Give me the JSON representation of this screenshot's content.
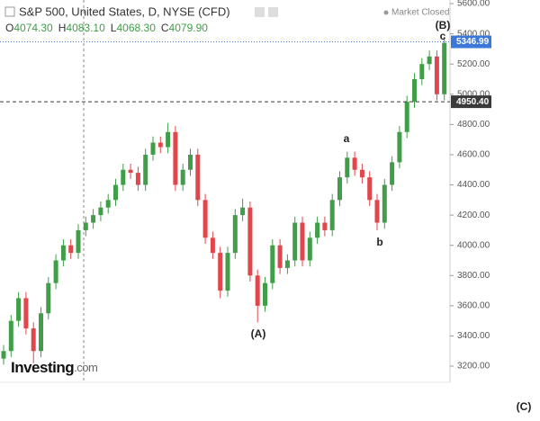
{
  "header": {
    "title": "S&P 500, United States, D, NYSE (CFD)",
    "status": "Market Closed",
    "ohlc": [
      {
        "key": "O",
        "value": "4074.30"
      },
      {
        "key": "H",
        "value": "4083.10"
      },
      {
        "key": "L",
        "value": "4068.30"
      },
      {
        "key": "C",
        "value": "4079.90"
      }
    ],
    "logo": "Investing",
    "logo_suffix": ".com"
  },
  "chart_data": {
    "type": "candlestick",
    "open": [
      3250,
      3300,
      3500,
      3650,
      3450,
      3300,
      3550,
      3750,
      3900,
      4000,
      3950,
      4100,
      4150,
      4200,
      4250,
      4300,
      4400,
      4500,
      4480,
      4400,
      4600,
      4680,
      4650,
      4750,
      4400,
      4500,
      4600,
      4300,
      4050,
      3950,
      3700,
      3950,
      4200,
      4250,
      3800,
      3600,
      3750,
      4000,
      3850,
      3900,
      4150,
      3900,
      4050,
      4150,
      4100,
      4300,
      4450,
      4580,
      4500,
      4450,
      4300,
      4150,
      4400,
      4550,
      4750,
      4950,
      5100,
      5200,
      5250,
      5000
    ],
    "high": [
      3340,
      3540,
      3690,
      3690,
      3490,
      3590,
      3790,
      3940,
      4040,
      4040,
      4140,
      4190,
      4240,
      4290,
      4340,
      4440,
      4540,
      4540,
      4520,
      4640,
      4720,
      4720,
      4810,
      4790,
      4540,
      4640,
      4640,
      4340,
      4090,
      3990,
      3990,
      4240,
      4310,
      4290,
      3840,
      3790,
      4040,
      4040,
      3940,
      4190,
      4190,
      4090,
      4190,
      4190,
      4340,
      4490,
      4620,
      4620,
      4540,
      4490,
      4340,
      4440,
      4590,
      4790,
      4990,
      5140,
      5240,
      5290,
      5290,
      5380
    ],
    "low": [
      3210,
      3260,
      3460,
      3410,
      3220,
      3260,
      3510,
      3710,
      3860,
      3910,
      3910,
      4060,
      4110,
      4160,
      4210,
      4260,
      4360,
      4440,
      4360,
      4360,
      4560,
      4610,
      4610,
      4360,
      4360,
      4460,
      4260,
      4010,
      3910,
      3650,
      3660,
      3910,
      4160,
      3760,
      3490,
      3560,
      3710,
      3810,
      3810,
      3860,
      3860,
      3860,
      4010,
      4060,
      4060,
      4260,
      4410,
      4460,
      4410,
      4260,
      4100,
      4110,
      4360,
      4510,
      4710,
      4910,
      5060,
      5160,
      4960,
      4960
    ],
    "close": [
      3300,
      3500,
      3650,
      3450,
      3300,
      3550,
      3750,
      3900,
      4000,
      3950,
      4100,
      4150,
      4200,
      4250,
      4300,
      4400,
      4500,
      4480,
      4400,
      4600,
      4680,
      4650,
      4750,
      4400,
      4500,
      4600,
      4300,
      4050,
      3950,
      3700,
      3950,
      4200,
      4250,
      3800,
      3600,
      3750,
      4000,
      3850,
      3900,
      4150,
      3900,
      4050,
      4150,
      4100,
      4300,
      4450,
      4580,
      4500,
      4450,
      4300,
      4150,
      4400,
      4550,
      4750,
      4950,
      5100,
      5200,
      5250,
      5000,
      5340
    ],
    "up_color": "#3f9e47",
    "down_color": "#e0474c",
    "ylim": [
      3093,
      5624
    ],
    "yticks": [
      {
        "value": 3200,
        "label": "3200.00"
      },
      {
        "value": 3400,
        "label": "3400.00"
      },
      {
        "value": 3600,
        "label": "3600.00"
      },
      {
        "value": 3800,
        "label": "3800.00"
      },
      {
        "value": 4000,
        "label": "4000.00"
      },
      {
        "value": 4200,
        "label": "4200.00"
      },
      {
        "value": 4400,
        "label": "4400.00"
      },
      {
        "value": 4600,
        "label": "4600.00"
      },
      {
        "value": 4800,
        "label": "4800.00"
      },
      {
        "value": 5000,
        "label": "5000.00"
      },
      {
        "value": 5200,
        "label": "5200.00"
      },
      {
        "value": 5400,
        "label": "5400.00"
      },
      {
        "value": 5600,
        "label": "5600.00"
      }
    ],
    "price_lines": [
      {
        "value": 5346.99,
        "label": "5346.99",
        "color": "#3b78d8"
      },
      {
        "value": 4950.4,
        "label": "4950.40",
        "color": "#3a3a3a"
      }
    ],
    "annotations": [
      "a",
      "b",
      "(A)",
      "(B)",
      "c",
      "(C)"
    ]
  }
}
